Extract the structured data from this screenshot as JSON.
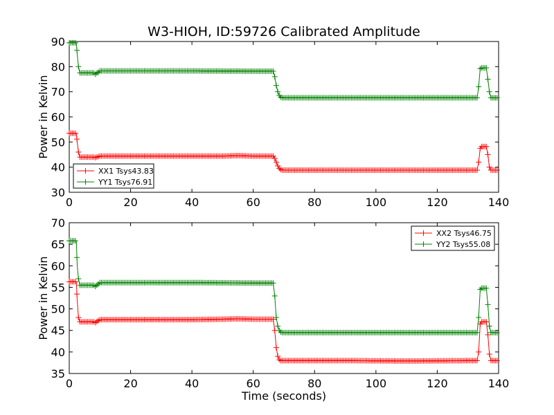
{
  "chart_data": {
    "type": "line",
    "title": "W3-HIOH, ID:59726 Calibrated Amplitude",
    "xlabel": "Time (seconds)",
    "xlim": [
      0,
      140
    ],
    "x_ticks": [
      0,
      20,
      40,
      60,
      80,
      100,
      120,
      140
    ],
    "grid": false,
    "subplots": [
      {
        "ylabel": "Power in Kelvin",
        "ylim": [
          30,
          90
        ],
        "y_ticks": [
          30,
          40,
          50,
          60,
          70,
          80,
          90
        ],
        "legend_position": "lower-left",
        "series": [
          {
            "name": "XX1 Tsys43.83",
            "color": "#ff0000",
            "x": [
              0,
              2.3,
              2.6,
              3.0,
              3.5,
              8.0,
              8.5,
              9.5,
              10.0,
              40,
              50,
              55,
              60,
              66.5,
              67.0,
              67.5,
              68.0,
              68.5,
              69.0,
              69.5,
              70,
              90,
              110,
              133.0,
              133.5,
              134.0,
              134.5,
              136.0,
              136.5,
              137.0,
              137.5,
              139.5
            ],
            "y": [
              53.5,
              53.5,
              50,
              46,
              44,
              44,
              43.8,
              44.2,
              44.4,
              44.4,
              44.4,
              44.6,
              44.4,
              44.4,
              43.5,
              42,
              40.5,
              39.5,
              39,
              38.8,
              38.8,
              38.8,
              38.8,
              38.8,
              42,
              47.5,
              48.2,
              48.2,
              45,
              40,
              38.8,
              38.8
            ]
          },
          {
            "name": "YY1 Tsys76.91",
            "color": "#008000",
            "x": [
              0,
              2.3,
              2.6,
              3.0,
              3.5,
              8.0,
              8.5,
              9.5,
              10.0,
              40,
              60,
              66.5,
              67.0,
              67.5,
              68.0,
              68.5,
              69.0,
              69.5,
              70,
              90,
              110,
              133.0,
              133.5,
              134.0,
              134.5,
              136.0,
              136.5,
              137.0,
              137.5,
              139.5
            ],
            "y": [
              89.5,
              89.5,
              85,
              80,
              77.5,
              77.5,
              77.0,
              77.8,
              78.3,
              78.3,
              78.2,
              78.2,
              76,
              72.5,
              70,
              68.5,
              67.8,
              67.6,
              67.6,
              67.6,
              67.6,
              67.6,
              72,
              79.2,
              79.5,
              79.5,
              75,
              70,
              67.6,
              67.6
            ]
          }
        ]
      },
      {
        "ylabel": "Power in Kelvin",
        "ylim": [
          35,
          70
        ],
        "y_ticks": [
          35,
          40,
          45,
          50,
          55,
          60,
          65,
          70
        ],
        "legend_position": "top-right",
        "series": [
          {
            "name": "XX2 Tsys46.75",
            "color": "#ff0000",
            "x": [
              0,
              2.3,
              2.6,
              3.0,
              3.5,
              8.0,
              8.5,
              9.5,
              10.0,
              40,
              50,
              55,
              60,
              66.5,
              67.0,
              67.5,
              68.0,
              68.5,
              69.0,
              69.5,
              70,
              90,
              110,
              133.0,
              133.5,
              134.0,
              134.5,
              136.0,
              136.5,
              137.0,
              137.5,
              139.5
            ],
            "y": [
              56.3,
              56.3,
              52,
              48,
              47.0,
              47.0,
              46.8,
              47.3,
              47.5,
              47.5,
              47.6,
              47.7,
              47.6,
              47.6,
              45,
              41,
              39,
              38.2,
              38.0,
              38.0,
              38.0,
              38.0,
              37.9,
              38.0,
              40,
              46.5,
              47.0,
              47.0,
              44,
              39.5,
              38.0,
              38.0
            ]
          },
          {
            "name": "YY2 Tsys55.08",
            "color": "#008000",
            "x": [
              0,
              2.3,
              2.6,
              3.0,
              3.5,
              8.0,
              8.5,
              9.5,
              10.0,
              40,
              60,
              66.5,
              67.0,
              67.5,
              68.0,
              68.5,
              69.0,
              69.5,
              70,
              90,
              110,
              133.0,
              133.5,
              134.0,
              134.5,
              136.0,
              136.5,
              137.0,
              137.5,
              139.5
            ],
            "y": [
              65.8,
              65.8,
              60,
              57,
              55.5,
              55.5,
              55.2,
              55.8,
              56.1,
              56.1,
              56.0,
              56.0,
              53,
              48,
              46,
              45,
              44.6,
              44.5,
              44.5,
              44.5,
              44.5,
              44.5,
              48,
              54.5,
              54.8,
              54.8,
              51,
              46,
              44.5,
              44.5
            ]
          }
        ]
      }
    ]
  }
}
